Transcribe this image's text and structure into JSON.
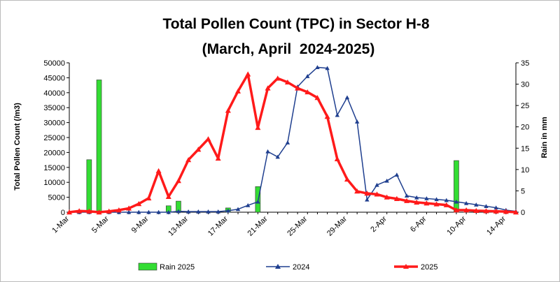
{
  "chart_data": {
    "type": "bar+line",
    "title_line1": "Total Pollen Count (TPC) in Sector H-8",
    "title_line2": "(March, April  2024-2025)",
    "ylabel": "Total Pollen Count (/m3)",
    "y2label": "Rain in mm",
    "ylim": [
      0,
      50000
    ],
    "y2lim": [
      0,
      35
    ],
    "yticks": [
      0,
      5000,
      10000,
      15000,
      20000,
      25000,
      30000,
      35000,
      40000,
      45000,
      50000
    ],
    "y2ticks": [
      0,
      5,
      10,
      15,
      20,
      25,
      30,
      35
    ],
    "x": [
      "1-Mar",
      "2-Mar",
      "3-Mar",
      "4-Mar",
      "5-Mar",
      "6-Mar",
      "7-Mar",
      "8-Mar",
      "9-Mar",
      "10-Mar",
      "11-Mar",
      "12-Mar",
      "13-Mar",
      "14-Mar",
      "15-Mar",
      "16-Mar",
      "17-Mar",
      "18-Mar",
      "19-Mar",
      "20-Mar",
      "21-Mar",
      "22-Mar",
      "23-Mar",
      "24-Mar",
      "25-Mar",
      "26-Mar",
      "27-Mar",
      "28-Mar",
      "29-Mar",
      "30-Mar",
      "31-Mar",
      "1-Apr",
      "2-Apr",
      "3-Apr",
      "4-Apr",
      "5-Apr",
      "6-Apr",
      "7-Apr",
      "8-Apr",
      "9-Apr",
      "10-Apr",
      "11-Apr",
      "12-Apr",
      "13-Apr",
      "14-Apr",
      "15-Apr"
    ],
    "xtick_labels": [
      "1-Mar",
      "5-Mar",
      "9-Mar",
      "13-Mar",
      "17-Mar",
      "21-Mar",
      "25-Mar",
      "29-Mar",
      "2-Apr",
      "6-Apr",
      "10-Apr",
      "14-Apr"
    ],
    "grid": false,
    "legend_placement": "bottom",
    "series": [
      {
        "name": "Rain 2025",
        "type": "bar",
        "axis": "y2",
        "color": "#33dd33",
        "values": [
          0,
          0,
          12.3,
          31,
          0,
          0,
          0,
          0,
          0,
          0,
          1.5,
          2.6,
          0,
          0,
          0,
          0,
          1,
          0,
          0,
          6,
          0,
          0,
          0,
          0,
          0,
          0,
          0,
          0,
          0,
          0,
          0,
          0,
          0,
          0,
          0,
          0,
          0,
          0,
          0,
          12.1,
          0,
          0,
          0,
          0,
          0,
          0
        ]
      },
      {
        "name": "2024",
        "type": "line",
        "axis": "y",
        "color": "#1f3f8f",
        "values": [
          0,
          0,
          0,
          0,
          0,
          0,
          0,
          0,
          0,
          0,
          0,
          300,
          200,
          200,
          200,
          200,
          500,
          1000,
          2300,
          3500,
          20300,
          18500,
          23300,
          42000,
          45500,
          48500,
          48200,
          32500,
          38400,
          30300,
          4200,
          9100,
          10500,
          12500,
          5500,
          4900,
          4600,
          4300,
          4000,
          3500,
          3000,
          2500,
          2000,
          1500,
          700,
          300
        ]
      },
      {
        "name": "2025",
        "type": "line",
        "axis": "y",
        "color": "#ff1a1a",
        "values": [
          0,
          400,
          300,
          0,
          300,
          700,
          1300,
          2800,
          4700,
          13800,
          5200,
          10500,
          17500,
          21000,
          24500,
          18000,
          34000,
          40500,
          46200,
          28300,
          41500,
          44800,
          43500,
          41500,
          40200,
          38300,
          32000,
          17800,
          11000,
          7000,
          6300,
          6000,
          5000,
          4500,
          3800,
          3300,
          3000,
          2700,
          2400,
          700,
          700,
          500,
          400,
          300,
          200,
          0
        ]
      }
    ]
  }
}
